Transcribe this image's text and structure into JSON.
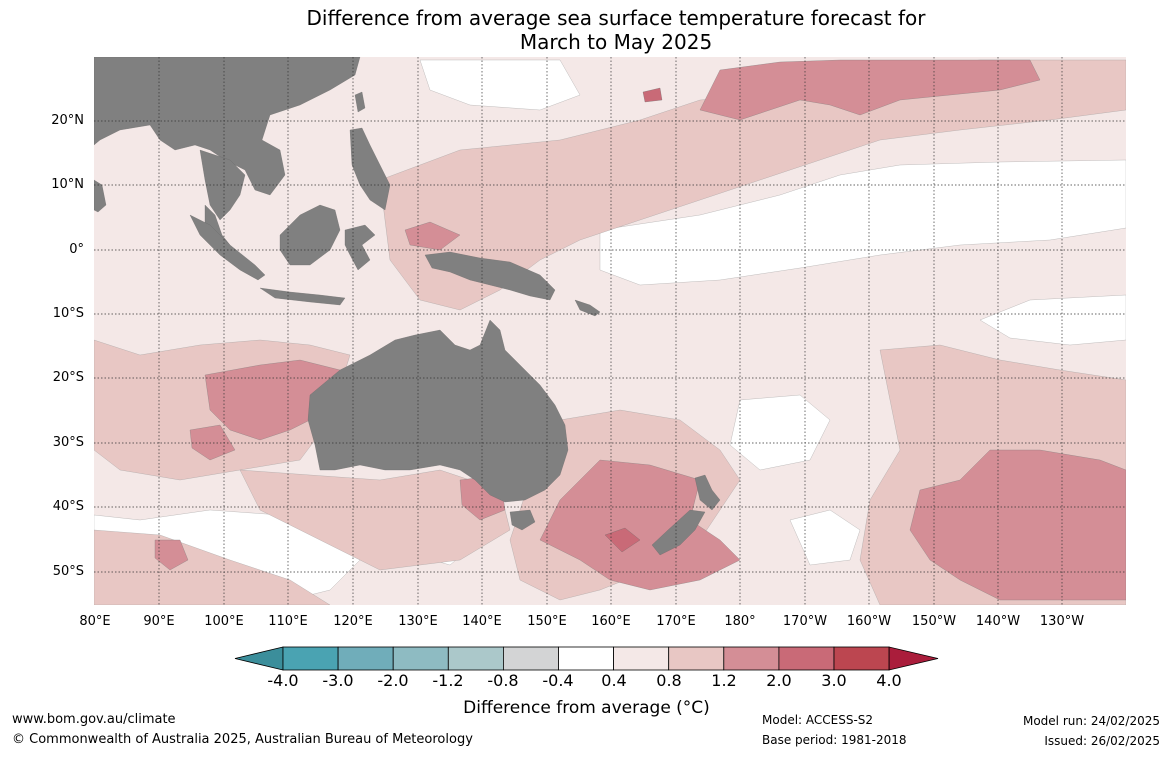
{
  "title_line1": "Difference from average sea surface temperature forecast for",
  "title_line2": "March to May 2025",
  "lat_labels": [
    "20°N",
    "10°N",
    "0°",
    "10°S",
    "20°S",
    "30°S",
    "40°S",
    "50°S"
  ],
  "lon_labels": [
    "80°E",
    "90°E",
    "100°E",
    "110°E",
    "120°E",
    "130°E",
    "140°E",
    "150°E",
    "160°E",
    "170°E",
    "180°",
    "170°W",
    "160°W",
    "150°W",
    "140°W",
    "130°W"
  ],
  "colorbar": {
    "ticks": [
      "-4.0",
      "-3.0",
      "-2.0",
      "-1.2",
      "-0.8",
      "-0.4",
      "0.4",
      "0.8",
      "1.2",
      "2.0",
      "3.0",
      "4.0"
    ],
    "colors": [
      "#3b8e9b",
      "#4aa3b2",
      "#70adba",
      "#8ebbc2",
      "#abc8ca",
      "#d3d4d5",
      "#ffffff",
      "#f4e8e7",
      "#e8c7c4",
      "#d48e96",
      "#c96a77",
      "#bc4650",
      "#aa1d3b"
    ],
    "label": "Difference from average (°C)"
  },
  "colors": {
    "land": "#808080",
    "white_band": "#ffffff",
    "light_pink": "#f4e8e7",
    "pink": "#e8c7c4",
    "rose": "#d48e96",
    "deep_rose": "#c96a77",
    "red": "#bc4650"
  },
  "footer": {
    "website": "www.bom.gov.au/climate",
    "copyright": "© Commonwealth of Australia 2025, Australian Bureau of Meteorology",
    "model": "Model: ACCESS-S2",
    "base_period": "Base period: 1981-2018",
    "model_run": "Model run: 24/02/2025",
    "issued": "Issued: 26/02/2025"
  }
}
